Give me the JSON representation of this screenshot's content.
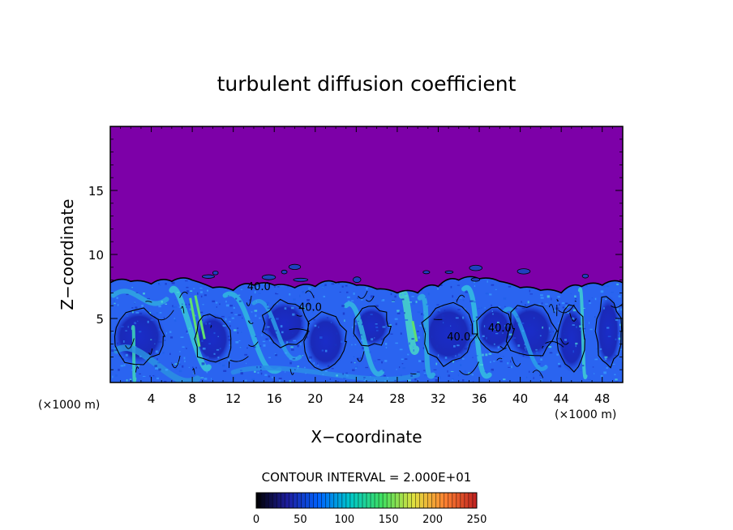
{
  "chart_data": {
    "type": "heatmap",
    "title": "turbulent diffusion coefficient",
    "xlabel": "X−coordinate",
    "ylabel": "Z−coordinate",
    "x_unit": "(×1000 m)",
    "xlim": [
      0,
      50
    ],
    "ylim": [
      0,
      20
    ],
    "x_ticks": [
      4,
      8,
      12,
      16,
      20,
      24,
      28,
      32,
      36,
      40,
      44,
      48
    ],
    "y_ticks": [
      5,
      10,
      15
    ],
    "contour_interval_text": "CONTOUR INTERVAL = 2.000E+01",
    "colorbar": {
      "range": [
        0,
        250
      ],
      "ticks": [
        0,
        50,
        100,
        150,
        200,
        250
      ],
      "colors": [
        "#000000",
        "#1e1ea0",
        "#0064ff",
        "#00c8c8",
        "#40e060",
        "#e0e040",
        "#ff8030",
        "#c02020"
      ]
    },
    "background_color": "#7d00a8",
    "boundary_layer": {
      "x": [
        0,
        2,
        4,
        6,
        8,
        10,
        12,
        14,
        16,
        18,
        20,
        22,
        24,
        26,
        28,
        30,
        32,
        34,
        36,
        38,
        40,
        42,
        44,
        46,
        48,
        50
      ],
      "top_z": [
        7.8,
        7.9,
        7.7,
        7.9,
        8.0,
        7.4,
        7.2,
        7.6,
        7.6,
        7.4,
        7.5,
        7.8,
        7.6,
        7.3,
        7.0,
        7.0,
        7.5,
        8.0,
        8.1,
        7.9,
        7.4,
        7.2,
        7.0,
        7.5,
        7.6,
        7.8
      ]
    },
    "contour_labels": [
      {
        "x": 14.5,
        "z": 7.2,
        "text": "40.0"
      },
      {
        "x": 19.5,
        "z": 5.6,
        "text": "40.0"
      },
      {
        "x": 34.0,
        "z": 3.3,
        "text": "40.0"
      },
      {
        "x": 38.0,
        "z": 4.0,
        "text": "40.0"
      }
    ]
  }
}
